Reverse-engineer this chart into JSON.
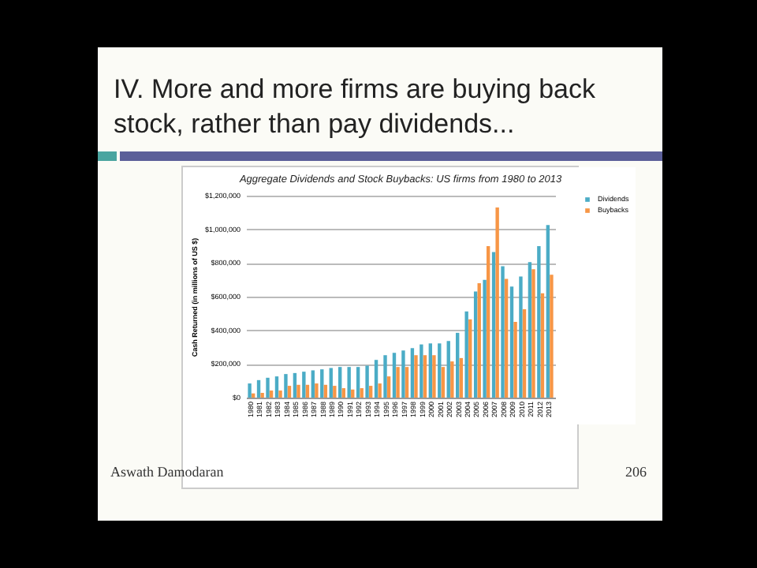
{
  "chart_data": {
    "type": "bar",
    "title": "Aggregate Dividends and Stock Buybacks: US firms from 1980 to 2013",
    "ylabel": "Cash Returned (in millions of US $)",
    "annotations": [
      "IV. More and more firms are buying back stock, rather than pay dividends...",
      "Aswath Damodaran",
      "206"
    ],
    "categories": [
      "1980",
      "1981",
      "1982",
      "1983",
      "1984",
      "1985",
      "1986",
      "1987",
      "1988",
      "1989",
      "1990",
      "1991",
      "1992",
      "1993",
      "1994",
      "1995",
      "1996",
      "1997",
      "1998",
      "1999",
      "2000",
      "2001",
      "2002",
      "2003",
      "2004",
      "2005",
      "2006",
      "2007",
      "2008",
      "2009",
      "2010",
      "2011",
      "2012",
      "2013"
    ],
    "series": [
      {
        "name": "Dividends",
        "color": "#4bacc6",
        "values": [
          84000,
          104000,
          118000,
          126000,
          140000,
          146000,
          154000,
          162000,
          168000,
          176000,
          182000,
          182000,
          182000,
          190000,
          224000,
          252000,
          266000,
          280000,
          294000,
          316000,
          322000,
          322000,
          336000,
          385000,
          512000,
          630000,
          700000,
          865000,
          780000,
          660000,
          720000,
          805000,
          900000,
          1025000
        ]
      },
      {
        "name": "Buybacks",
        "color": "#f79646",
        "values": [
          25000,
          28000,
          42000,
          42000,
          70000,
          76000,
          76000,
          84000,
          76000,
          70000,
          56000,
          48000,
          56000,
          70000,
          84000,
          126000,
          182000,
          182000,
          252000,
          252000,
          252000,
          182000,
          215000,
          235000,
          465000,
          680000,
          900000,
          1130000,
          705000,
          450000,
          525000,
          763000,
          620000,
          730000
        ]
      }
    ],
    "ylim": [
      0,
      1200000
    ],
    "yticks": [
      {
        "value": 0,
        "label": "$0"
      },
      {
        "value": 200000,
        "label": "$200,000"
      },
      {
        "value": 400000,
        "label": "$400,000"
      },
      {
        "value": 600000,
        "label": "$600,000"
      },
      {
        "value": 800000,
        "label": "$800,000"
      },
      {
        "value": 1000000,
        "label": "$1,000,000"
      },
      {
        "value": 1200000,
        "label": "$1,200,000"
      }
    ],
    "grid": "y",
    "legend": "right"
  }
}
